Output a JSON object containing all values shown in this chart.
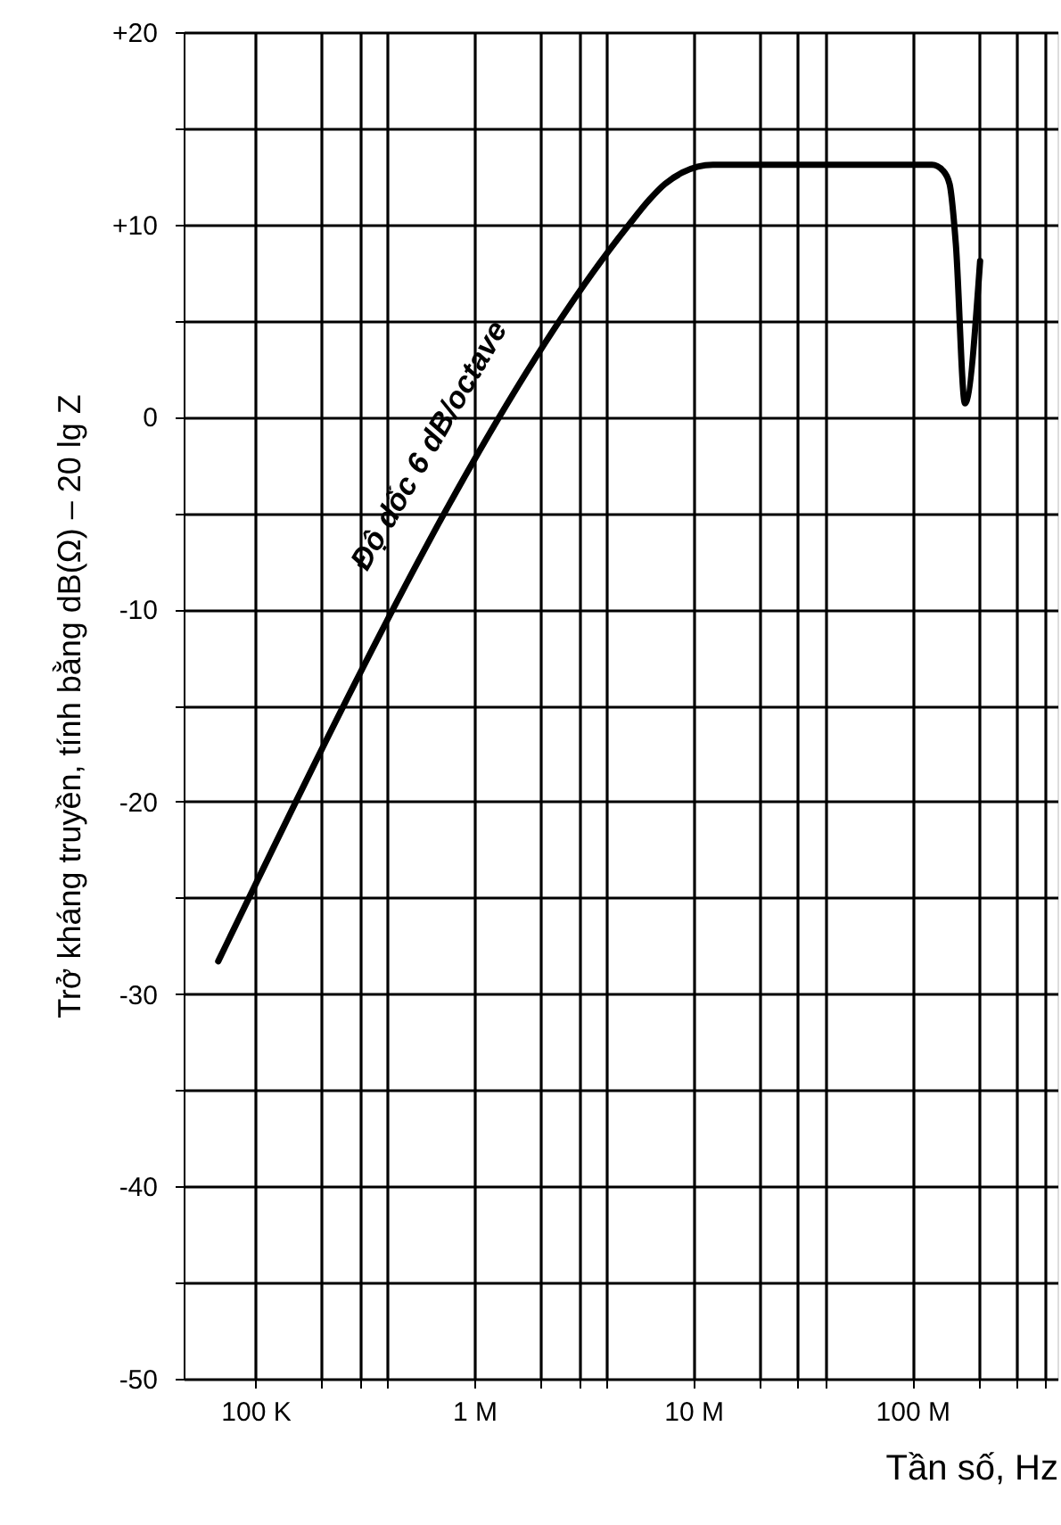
{
  "chart_data": {
    "type": "line",
    "xlabel": "Tần số, Hz",
    "ylabel": "Trở kháng truyền, tính bằng dB(Ω) – 20 lg Z",
    "log": "x",
    "x": [
      67600,
      5010000,
      6310000,
      7410000,
      8910000,
      12300000,
      123000000,
      138000000,
      148000000,
      158000000,
      174000000,
      204000000
    ],
    "series": [
      {
        "color": "#000000",
        "values": [
          -28.3,
          9.9,
          11.3,
          12.1,
          12.7,
          13.1,
          13.1,
          12.8,
          12.1,
          9.0,
          0.7,
          8.1
        ]
      }
    ],
    "xlim": [
      47000,
      460000000
    ],
    "xticks": [
      {
        "value": 100000,
        "label": "100 K"
      },
      {
        "value": 200000,
        "label": null
      },
      {
        "value": 300000,
        "label": null
      },
      {
        "value": 400000,
        "label": null
      },
      {
        "value": 1000000,
        "label": "1 M"
      },
      {
        "value": 2000000,
        "label": null
      },
      {
        "value": 3000000,
        "label": null
      },
      {
        "value": 4000000,
        "label": null
      },
      {
        "value": 10000000,
        "label": "10 M"
      },
      {
        "value": 20000000,
        "label": null
      },
      {
        "value": 30000000,
        "label": null
      },
      {
        "value": 40000000,
        "label": null
      },
      {
        "value": 100000000,
        "label": "100 M"
      },
      {
        "value": 200000000,
        "label": null
      },
      {
        "value": 300000000,
        "label": null
      },
      {
        "value": 400000000,
        "label": null
      }
    ],
    "ylim": [
      -50,
      20
    ],
    "yticks": [
      {
        "value": -50,
        "label": "-50"
      },
      {
        "value": -45,
        "label": null
      },
      {
        "value": -40,
        "label": "-40"
      },
      {
        "value": -35,
        "label": null
      },
      {
        "value": -30,
        "label": "-30"
      },
      {
        "value": -25,
        "label": null
      },
      {
        "value": -20,
        "label": "-20"
      },
      {
        "value": -15,
        "label": null
      },
      {
        "value": -10,
        "label": "-10"
      },
      {
        "value": -5,
        "label": null
      },
      {
        "value": 0,
        "label": "0"
      },
      {
        "value": 5,
        "label": null
      },
      {
        "value": 10,
        "label": "+10"
      },
      {
        "value": 15,
        "label": null
      },
      {
        "value": 20,
        "label": "+20"
      }
    ],
    "grid": true,
    "annotations": [
      "Độ dốc 6 dB/octave"
    ]
  }
}
